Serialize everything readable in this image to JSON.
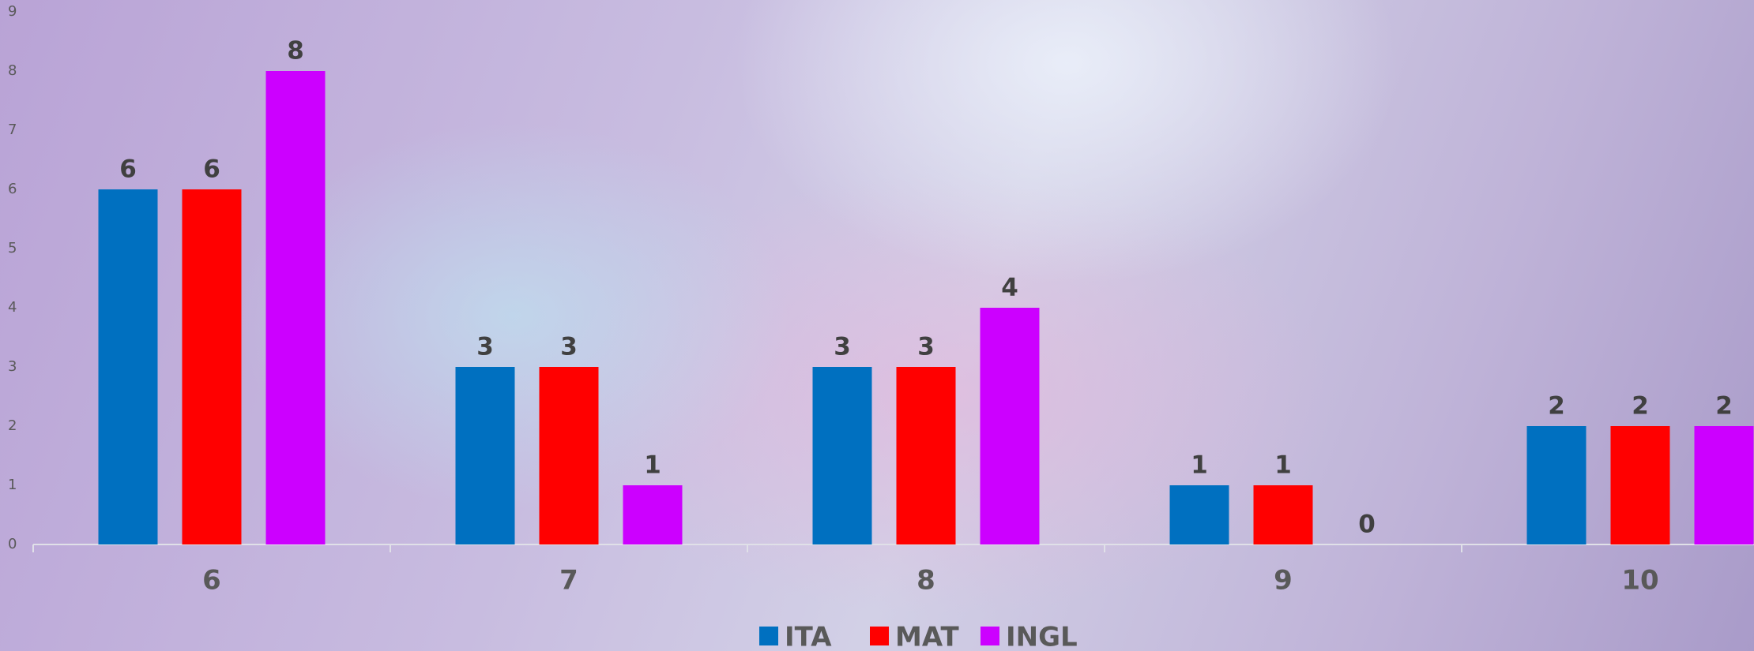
{
  "chart_data": {
    "type": "bar",
    "categories": [
      "6",
      "7",
      "8",
      "9",
      "10"
    ],
    "series": [
      {
        "name": "ITA",
        "color": "#0070c0",
        "values": [
          6,
          3,
          3,
          1,
          2
        ]
      },
      {
        "name": "MAT",
        "color": "#ff0000",
        "values": [
          6,
          3,
          3,
          1,
          2
        ]
      },
      {
        "name": "INGL",
        "color": "#cc00ff",
        "values": [
          8,
          1,
          4,
          0,
          2
        ]
      }
    ],
    "ylim": [
      0,
      9
    ],
    "yticks": [
      0,
      1,
      2,
      3,
      4,
      5,
      6,
      7,
      8,
      9
    ],
    "grid": false,
    "legend": "bottom"
  }
}
